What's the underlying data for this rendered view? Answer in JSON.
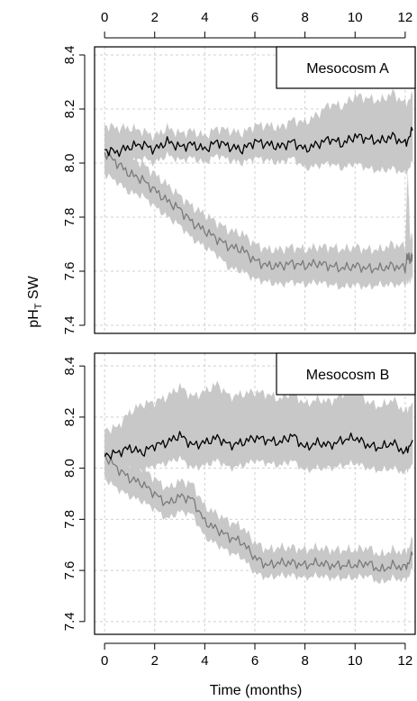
{
  "colors": {
    "background": "#ffffff",
    "grid": "#d0d0d0",
    "band": "#c8c8c8",
    "control_line": "#000000",
    "treatment_line": "#7a7a7a"
  },
  "axis_titles": {
    "y_main": "pH",
    "y_sub": "T",
    "y_rest": " SW",
    "x": "Time (months)"
  },
  "chart_data": [
    {
      "type": "line",
      "panel_label": "Mesocosm A",
      "xlim": [
        -0.4,
        12.4
      ],
      "ylim": [
        7.37,
        8.43
      ],
      "x_ticks": [
        0,
        2,
        4,
        6,
        8,
        10,
        12
      ],
      "y_ticks": [
        7.4,
        7.6,
        7.8,
        8.0,
        8.2,
        8.4
      ],
      "grid": true,
      "legend_position": "top-right",
      "series": [
        {
          "role": "control",
          "x": [
            0,
            0.5,
            1,
            1.5,
            2,
            2.5,
            3,
            3.5,
            4,
            4.5,
            5,
            5.5,
            6,
            6.5,
            7,
            7.5,
            8,
            8.5,
            9,
            9.5,
            10,
            10.5,
            11,
            11.5,
            12,
            12.3
          ],
          "y": [
            8.05,
            8.04,
            8.06,
            8.07,
            8.05,
            8.08,
            8.06,
            8.07,
            8.05,
            8.08,
            8.06,
            8.05,
            8.08,
            8.07,
            8.06,
            8.08,
            8.05,
            8.07,
            8.09,
            8.07,
            8.1,
            8.09,
            8.08,
            8.1,
            8.07,
            8.12
          ],
          "band_low": [
            7.98,
            7.99,
            8.0,
            8.02,
            8.0,
            8.03,
            8.01,
            8.02,
            8.0,
            8.03,
            8.01,
            8.0,
            8.02,
            8.01,
            8.0,
            8.02,
            7.98,
            7.99,
            8.0,
            7.98,
            8.0,
            7.98,
            7.97,
            7.98,
            7.96,
            8.0
          ],
          "band_high": [
            8.14,
            8.13,
            8.13,
            8.12,
            8.1,
            8.13,
            8.11,
            8.12,
            8.1,
            8.13,
            8.12,
            8.11,
            8.14,
            8.14,
            8.13,
            8.16,
            8.15,
            8.18,
            8.22,
            8.21,
            8.25,
            8.24,
            8.23,
            8.26,
            8.22,
            8.25
          ]
        },
        {
          "role": "treatment",
          "x": [
            0,
            0.5,
            1,
            1.5,
            2,
            2.5,
            3,
            3.5,
            4,
            4.5,
            5,
            5.5,
            6,
            6.5,
            7,
            7.5,
            8,
            8.5,
            9,
            9.5,
            10,
            10.5,
            11,
            11.5,
            12,
            12.1,
            12.2,
            12.3
          ],
          "y": [
            8.04,
            8.0,
            7.96,
            7.94,
            7.9,
            7.86,
            7.83,
            7.78,
            7.75,
            7.72,
            7.69,
            7.68,
            7.64,
            7.62,
            7.62,
            7.63,
            7.62,
            7.63,
            7.62,
            7.61,
            7.62,
            7.61,
            7.61,
            7.62,
            7.61,
            7.66,
            7.64,
            7.66
          ],
          "band_low": [
            7.96,
            7.93,
            7.89,
            7.88,
            7.84,
            7.8,
            7.77,
            7.72,
            7.69,
            7.66,
            7.61,
            7.6,
            7.57,
            7.56,
            7.55,
            7.56,
            7.55,
            7.56,
            7.55,
            7.54,
            7.55,
            7.54,
            7.55,
            7.55,
            7.55,
            7.56,
            7.56,
            7.58
          ],
          "band_high": [
            8.1,
            8.06,
            8.02,
            8.0,
            7.96,
            7.92,
            7.88,
            7.84,
            7.81,
            7.78,
            7.75,
            7.74,
            7.7,
            7.68,
            7.68,
            7.69,
            7.68,
            7.69,
            7.69,
            7.68,
            7.69,
            7.68,
            7.68,
            7.7,
            7.69,
            7.98,
            7.72,
            7.74
          ]
        }
      ]
    },
    {
      "type": "line",
      "panel_label": "Mesocosm B",
      "xlim": [
        -0.4,
        12.4
      ],
      "ylim": [
        7.35,
        8.45
      ],
      "x_ticks": [
        0,
        2,
        4,
        6,
        8,
        10,
        12
      ],
      "y_ticks": [
        7.4,
        7.6,
        7.8,
        8.0,
        8.2,
        8.4
      ],
      "grid": true,
      "legend_position": "top-right",
      "series": [
        {
          "role": "control",
          "x": [
            0,
            0.5,
            1,
            1.5,
            2,
            2.5,
            3,
            3.5,
            4,
            4.5,
            5,
            5.5,
            6,
            6.5,
            7,
            7.5,
            8,
            8.5,
            9,
            9.5,
            10,
            10.5,
            11,
            11.5,
            12,
            12.3
          ],
          "y": [
            8.05,
            8.06,
            8.08,
            8.06,
            8.09,
            8.1,
            8.13,
            8.09,
            8.1,
            8.12,
            8.09,
            8.1,
            8.12,
            8.11,
            8.1,
            8.13,
            8.08,
            8.1,
            8.09,
            8.11,
            8.12,
            8.09,
            8.08,
            8.1,
            8.06,
            8.11
          ],
          "band_low": [
            7.98,
            7.99,
            8.0,
            7.99,
            8.01,
            8.02,
            8.04,
            8.0,
            8.01,
            8.03,
            8.0,
            8.01,
            8.03,
            8.02,
            8.01,
            8.03,
            7.99,
            8.0,
            8.0,
            8.01,
            8.02,
            8.0,
            7.99,
            8.0,
            7.98,
            8.02
          ],
          "band_high": [
            8.15,
            8.16,
            8.22,
            8.25,
            8.26,
            8.28,
            8.32,
            8.28,
            8.3,
            8.33,
            8.28,
            8.29,
            8.3,
            8.29,
            8.27,
            8.3,
            8.25,
            8.27,
            8.26,
            8.29,
            8.31,
            8.26,
            8.24,
            8.27,
            8.22,
            8.26
          ]
        },
        {
          "role": "treatment",
          "x": [
            0,
            0.5,
            1,
            1.5,
            2,
            2.5,
            3,
            3.5,
            4,
            4.5,
            5,
            5.5,
            6,
            6.5,
            7,
            7.5,
            8,
            8.5,
            9,
            9.5,
            10,
            10.5,
            11,
            11.5,
            12,
            12.3
          ],
          "y": [
            8.05,
            8.0,
            7.96,
            7.94,
            7.9,
            7.86,
            7.89,
            7.88,
            7.79,
            7.76,
            7.73,
            7.71,
            7.65,
            7.62,
            7.63,
            7.63,
            7.62,
            7.63,
            7.62,
            7.62,
            7.62,
            7.63,
            7.6,
            7.62,
            7.61,
            7.66
          ],
          "band_low": [
            7.96,
            7.92,
            7.89,
            7.87,
            7.84,
            7.8,
            7.83,
            7.82,
            7.73,
            7.7,
            7.67,
            7.65,
            7.59,
            7.57,
            7.58,
            7.58,
            7.57,
            7.58,
            7.57,
            7.57,
            7.57,
            7.58,
            7.55,
            7.57,
            7.56,
            7.6
          ],
          "band_high": [
            8.12,
            8.07,
            8.02,
            8.0,
            7.96,
            7.92,
            7.95,
            7.94,
            7.85,
            7.82,
            7.79,
            7.77,
            7.71,
            7.68,
            7.69,
            7.69,
            7.68,
            7.69,
            7.68,
            7.68,
            7.68,
            7.69,
            7.66,
            7.68,
            7.67,
            7.72
          ]
        }
      ]
    }
  ]
}
